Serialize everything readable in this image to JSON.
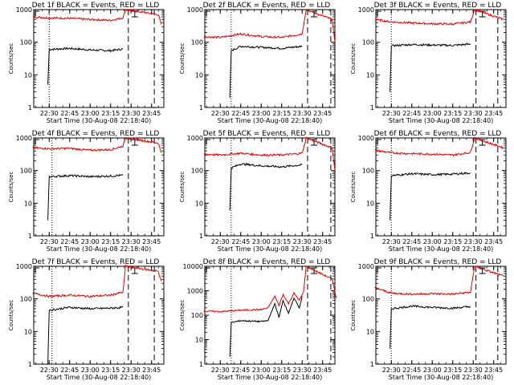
{
  "figure": {
    "background": "#ffffff",
    "event_color": "#000000",
    "lld_color": "#e00000"
  },
  "chart_data": [
    {
      "type": "line",
      "y_scale": "log",
      "ylim": [
        1,
        1000
      ],
      "title": "Det 1f BLACK = Events, RED = LLD",
      "ylabel": "Counts/sec",
      "xlabel": "Start Time (30-Aug-08 22:18:40)",
      "x_ticks": [
        "22:30",
        "22:45",
        "23:00",
        "23:15",
        "23:30",
        "23:45"
      ],
      "y_ticks": [
        "1",
        "10",
        "100",
        "1000"
      ],
      "vlines": {
        "dotted": "22:30",
        "dashed": [
          "23:28",
          "23:47"
        ]
      },
      "series": [
        {
          "name": "BLACK = Events",
          "color": "#000000",
          "points": [
            [
              "22:29",
              5
            ],
            [
              "22:30",
              60
            ],
            [
              "22:45",
              65
            ],
            [
              "23:00",
              58
            ],
            [
              "23:15",
              55
            ],
            [
              "23:24",
              62
            ]
          ]
        },
        {
          "name": "RED = LLD",
          "color": "#e00000",
          "points": [
            [
              "22:18",
              600
            ],
            [
              "22:30",
              560
            ],
            [
              "22:45",
              540
            ],
            [
              "23:00",
              500
            ],
            [
              "23:15",
              470
            ],
            [
              "23:24",
              560
            ],
            [
              "23:26",
              1000
            ],
            [
              "23:50",
              700
            ],
            [
              "23:52",
              350
            ]
          ]
        }
      ]
    },
    {
      "type": "line",
      "y_scale": "log",
      "ylim": [
        1,
        1000
      ],
      "title": "Det 2f BLACK = Events, RED = LLD",
      "ylabel": "Counts/sec",
      "xlabel": "Start Time (30-Aug-08 22:18:40)",
      "x_ticks": [
        "22:30",
        "22:45",
        "23:00",
        "23:15",
        "23:30",
        "23:45"
      ],
      "y_ticks": [
        "1",
        "10",
        "100",
        "1000"
      ],
      "vlines": {
        "dotted": "22:38",
        "dashed": [
          "23:34",
          "23:51"
        ]
      },
      "series": [
        {
          "name": "BLACK = Events",
          "color": "#000000",
          "points": [
            [
              "22:37",
              2
            ],
            [
              "22:38",
              55
            ],
            [
              "22:45",
              75
            ],
            [
              "23:00",
              70
            ],
            [
              "23:15",
              65
            ],
            [
              "23:30",
              75
            ]
          ]
        },
        {
          "name": "RED = LLD",
          "color": "#e00000",
          "points": [
            [
              "22:18",
              150
            ],
            [
              "22:30",
              140
            ],
            [
              "22:45",
              180
            ],
            [
              "23:00",
              150
            ],
            [
              "23:15",
              140
            ],
            [
              "23:30",
              180
            ],
            [
              "23:33",
              1000
            ],
            [
              "23:52",
              500
            ],
            [
              "23:54",
              100
            ]
          ]
        }
      ]
    },
    {
      "type": "line",
      "y_scale": "log",
      "ylim": [
        1,
        1000
      ],
      "title": "Det 3f BLACK = Events, RED = LLD",
      "ylabel": "Counts/sec",
      "xlabel": "Start Time (30-Aug-08 22:18:40)",
      "x_ticks": [
        "22:30",
        "22:45",
        "23:00",
        "23:15",
        "23:30",
        "23:45"
      ],
      "y_ticks": [
        "1",
        "10",
        "100",
        "1000"
      ],
      "vlines": {
        "dotted": "22:30",
        "dashed": [
          "23:32",
          "23:48"
        ]
      },
      "series": [
        {
          "name": "BLACK = Events",
          "color": "#000000",
          "points": [
            [
              "22:29",
              3
            ],
            [
              "22:30",
              78
            ],
            [
              "22:45",
              85
            ],
            [
              "23:00",
              82
            ],
            [
              "23:15",
              80
            ],
            [
              "23:28",
              88
            ]
          ]
        },
        {
          "name": "RED = LLD",
          "color": "#e00000",
          "points": [
            [
              "22:18",
              500
            ],
            [
              "22:30",
              420
            ],
            [
              "22:45",
              390
            ],
            [
              "23:00",
              370
            ],
            [
              "23:15",
              360
            ],
            [
              "23:28",
              420
            ],
            [
              "23:31",
              1000
            ],
            [
              "23:52",
              500
            ]
          ]
        }
      ]
    },
    {
      "type": "line",
      "y_scale": "log",
      "ylim": [
        1,
        1000
      ],
      "title": "Det 4f BLACK = Events, RED = LLD",
      "ylabel": "Counts/sec",
      "xlabel": "Start Time (30-Aug-08 22:18:40)",
      "x_ticks": [
        "22:30",
        "22:45",
        "23:00",
        "23:15",
        "23:30",
        "23:45"
      ],
      "y_ticks": [
        "1",
        "10",
        "100",
        "1000"
      ],
      "vlines": {
        "dotted": "22:32",
        "dashed": [
          "23:28",
          "23:47"
        ]
      },
      "series": [
        {
          "name": "BLACK = Events",
          "color": "#000000",
          "points": [
            [
              "22:29",
              3
            ],
            [
              "22:30",
              65
            ],
            [
              "22:45",
              70
            ],
            [
              "23:00",
              65
            ],
            [
              "23:15",
              68
            ],
            [
              "23:24",
              72
            ]
          ]
        },
        {
          "name": "RED = LLD",
          "color": "#e00000",
          "points": [
            [
              "22:18",
              500
            ],
            [
              "22:30",
              470
            ],
            [
              "22:45",
              480
            ],
            [
              "23:00",
              420
            ],
            [
              "23:15",
              440
            ],
            [
              "23:24",
              560
            ],
            [
              "23:26",
              1000
            ],
            [
              "23:50",
              700
            ],
            [
              "23:52",
              350
            ]
          ]
        }
      ]
    },
    {
      "type": "line",
      "y_scale": "log",
      "ylim": [
        1,
        1000
      ],
      "title": "Det 5f BLACK = Events, RED = LLD",
      "ylabel": "Counts/sec",
      "xlabel": "Start Time (30-Aug-08 22:18:40)",
      "x_ticks": [
        "22:30",
        "22:45",
        "23:00",
        "23:15",
        "23:30",
        "23:45"
      ],
      "y_ticks": [
        "1",
        "10",
        "100",
        "1000"
      ],
      "vlines": {
        "dotted": "22:38",
        "dashed": [
          "23:34",
          "23:51"
        ]
      },
      "series": [
        {
          "name": "BLACK = Events",
          "color": "#000000",
          "points": [
            [
              "22:37",
              6
            ],
            [
              "22:38",
              120
            ],
            [
              "22:45",
              160
            ],
            [
              "23:00",
              140
            ],
            [
              "23:15",
              130
            ],
            [
              "23:30",
              150
            ]
          ]
        },
        {
          "name": "RED = LLD",
          "color": "#e00000",
          "points": [
            [
              "22:18",
              320
            ],
            [
              "22:30",
              300
            ],
            [
              "22:45",
              340
            ],
            [
              "23:00",
              300
            ],
            [
              "23:15",
              300
            ],
            [
              "23:30",
              340
            ],
            [
              "23:33",
              1000
            ],
            [
              "23:52",
              500
            ],
            [
              "23:54",
              100
            ]
          ]
        }
      ]
    },
    {
      "type": "line",
      "y_scale": "log",
      "ylim": [
        1,
        1000
      ],
      "title": "Det 6f BLACK = Events, RED = LLD",
      "ylabel": "Counts/sec",
      "xlabel": "Start Time (30-Aug-08 22:18:40)",
      "x_ticks": [
        "22:30",
        "22:45",
        "23:00",
        "23:15",
        "23:30",
        "23:45"
      ],
      "y_ticks": [
        "1",
        "10",
        "100",
        "1000"
      ],
      "vlines": {
        "dotted": "22:30",
        "dashed": [
          "23:32",
          "23:48"
        ]
      },
      "series": [
        {
          "name": "BLACK = Events",
          "color": "#000000",
          "points": [
            [
              "22:29",
              3
            ],
            [
              "22:30",
              70
            ],
            [
              "22:45",
              80
            ],
            [
              "23:00",
              75
            ],
            [
              "23:15",
              78
            ],
            [
              "23:28",
              85
            ]
          ]
        },
        {
          "name": "RED = LLD",
          "color": "#e00000",
          "points": [
            [
              "22:18",
              420
            ],
            [
              "22:30",
              350
            ],
            [
              "22:45",
              330
            ],
            [
              "23:00",
              320
            ],
            [
              "23:15",
              300
            ],
            [
              "23:28",
              360
            ],
            [
              "23:31",
              1000
            ],
            [
              "23:52",
              500
            ]
          ]
        }
      ]
    },
    {
      "type": "line",
      "y_scale": "log",
      "ylim": [
        1,
        1000
      ],
      "title": "Det 7f BLACK = Events, RED = LLD",
      "ylabel": "Counts/sec",
      "xlabel": "Start Time (30-Aug-08 22:18:40)",
      "x_ticks": [
        "22:30",
        "22:45",
        "23:00",
        "23:15",
        "23:30",
        "23:45"
      ],
      "y_ticks": [
        "1",
        "10",
        "100",
        "1000"
      ],
      "vlines": {
        "dotted": "22:32",
        "dashed": [
          "23:28",
          "23:47"
        ]
      },
      "series": [
        {
          "name": "BLACK = Events",
          "color": "#000000",
          "points": [
            [
              "22:29",
              1
            ],
            [
              "22:30",
              45
            ],
            [
              "22:45",
              55
            ],
            [
              "23:00",
              50
            ],
            [
              "23:15",
              52
            ],
            [
              "23:24",
              55
            ]
          ]
        },
        {
          "name": "RED = LLD",
          "color": "#e00000",
          "points": [
            [
              "22:18",
              150
            ],
            [
              "22:30",
              120
            ],
            [
              "22:45",
              130
            ],
            [
              "23:00",
              120
            ],
            [
              "23:15",
              130
            ],
            [
              "23:24",
              160
            ],
            [
              "23:26",
              1000
            ],
            [
              "23:50",
              700
            ],
            [
              "23:52",
              350
            ]
          ]
        }
      ]
    },
    {
      "type": "line",
      "y_scale": "log",
      "ylim": [
        1,
        10000
      ],
      "title": "Det 8f BLACK = Events, RED = LLD",
      "ylabel": "Counts/sec",
      "xlabel": "Start Time (30-Aug-08 22:18:40)",
      "x_ticks": [
        "22:30",
        "22:45",
        "23:00",
        "23:15",
        "23:30",
        "23:45"
      ],
      "y_ticks": [
        "1",
        "10",
        "100",
        "1000",
        "10000"
      ],
      "vlines": {
        "dotted": "22:38",
        "dashed": [
          "23:34",
          "23:51"
        ]
      },
      "series": [
        {
          "name": "BLACK = Events",
          "color": "#000000",
          "points": [
            [
              "22:37",
              2
            ],
            [
              "22:38",
              50
            ],
            [
              "22:45",
              60
            ],
            [
              "23:00",
              55
            ],
            [
              "23:05",
              60
            ],
            [
              "23:10",
              300
            ],
            [
              "23:13",
              80
            ],
            [
              "23:16",
              400
            ],
            [
              "23:20",
              120
            ],
            [
              "23:24",
              500
            ],
            [
              "23:28",
              200
            ],
            [
              "23:30",
              600
            ]
          ]
        },
        {
          "name": "RED = LLD",
          "color": "#e00000",
          "points": [
            [
              "22:18",
              150
            ],
            [
              "22:30",
              140
            ],
            [
              "22:45",
              160
            ],
            [
              "23:00",
              170
            ],
            [
              "23:05",
              200
            ],
            [
              "23:10",
              600
            ],
            [
              "23:13",
              250
            ],
            [
              "23:16",
              700
            ],
            [
              "23:20",
              300
            ],
            [
              "23:24",
              800
            ],
            [
              "23:28",
              400
            ],
            [
              "23:31",
              900
            ],
            [
              "23:33",
              10000
            ],
            [
              "23:52",
              3000
            ],
            [
              "23:55",
              500
            ]
          ]
        }
      ]
    },
    {
      "type": "line",
      "y_scale": "log",
      "ylim": [
        1,
        1000
      ],
      "title": "Det 9f BLACK = Events, RED = LLD",
      "ylabel": "Counts/sec",
      "xlabel": "Start Time (30-Aug-08 22:18:40)",
      "x_ticks": [
        "22:30",
        "22:45",
        "23:00",
        "23:15",
        "23:30",
        "23:45"
      ],
      "y_ticks": [
        "1",
        "10",
        "100",
        "1000"
      ],
      "vlines": {
        "dotted": "22:30",
        "dashed": [
          "23:32",
          "23:48"
        ]
      },
      "series": [
        {
          "name": "BLACK = Events",
          "color": "#000000",
          "points": [
            [
              "22:29",
              3
            ],
            [
              "22:30",
              50
            ],
            [
              "22:45",
              60
            ],
            [
              "23:00",
              55
            ],
            [
              "23:15",
              52
            ],
            [
              "23:28",
              58
            ]
          ]
        },
        {
          "name": "RED = LLD",
          "color": "#e00000",
          "points": [
            [
              "22:18",
              220
            ],
            [
              "22:30",
              150
            ],
            [
              "22:45",
              140
            ],
            [
              "23:00",
              145
            ],
            [
              "23:15",
              140
            ],
            [
              "23:28",
              160
            ],
            [
              "23:31",
              1000
            ],
            [
              "23:52",
              500
            ]
          ]
        }
      ]
    }
  ]
}
